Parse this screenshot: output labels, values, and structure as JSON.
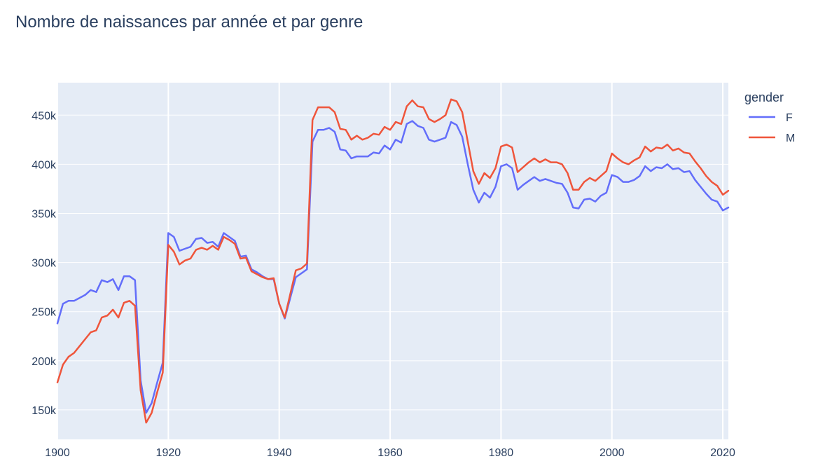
{
  "chart_data": {
    "type": "line",
    "title": "Nombre de naissances par année et par genre",
    "xlabel": "",
    "ylabel": "",
    "xlim": [
      1900,
      2021
    ],
    "ylim": [
      120000,
      483000
    ],
    "x_ticks": [
      1900,
      1920,
      1940,
      1960,
      1980,
      2000,
      2020
    ],
    "x_tick_labels": [
      "1900",
      "1920",
      "1940",
      "1960",
      "1980",
      "2000",
      "2020"
    ],
    "y_ticks": [
      150000,
      200000,
      250000,
      300000,
      350000,
      400000,
      450000
    ],
    "y_tick_labels": [
      "150k",
      "200k",
      "250k",
      "300k",
      "350k",
      "400k",
      "450k"
    ],
    "grid": true,
    "legend": {
      "title": "gender",
      "placement": "right"
    },
    "plot_background": "#e5ecf6",
    "x": [
      1900,
      1901,
      1902,
      1903,
      1904,
      1905,
      1906,
      1907,
      1908,
      1909,
      1910,
      1911,
      1912,
      1913,
      1914,
      1915,
      1916,
      1917,
      1918,
      1919,
      1920,
      1921,
      1922,
      1923,
      1924,
      1925,
      1926,
      1927,
      1928,
      1929,
      1930,
      1931,
      1932,
      1933,
      1934,
      1935,
      1936,
      1937,
      1938,
      1939,
      1940,
      1941,
      1942,
      1943,
      1944,
      1945,
      1946,
      1947,
      1948,
      1949,
      1950,
      1951,
      1952,
      1953,
      1954,
      1955,
      1956,
      1957,
      1958,
      1959,
      1960,
      1961,
      1962,
      1963,
      1964,
      1965,
      1966,
      1967,
      1968,
      1969,
      1970,
      1971,
      1972,
      1973,
      1974,
      1975,
      1976,
      1977,
      1978,
      1979,
      1980,
      1981,
      1982,
      1983,
      1984,
      1985,
      1986,
      1987,
      1988,
      1989,
      1990,
      1991,
      1992,
      1993,
      1994,
      1995,
      1996,
      1997,
      1998,
      1999,
      2000,
      2001,
      2002,
      2003,
      2004,
      2005,
      2006,
      2007,
      2008,
      2009,
      2010,
      2011,
      2012,
      2013,
      2014,
      2015,
      2016,
      2017,
      2018,
      2019,
      2020,
      2021
    ],
    "series": [
      {
        "name": "F",
        "color": "#636efa",
        "values": [
          238000,
          258000,
          261000,
          261000,
          264000,
          267000,
          272000,
          270000,
          282000,
          280000,
          283000,
          272000,
          286000,
          286000,
          282000,
          180000,
          147000,
          157000,
          178000,
          198000,
          330000,
          326000,
          312000,
          314000,
          316000,
          324000,
          325000,
          320000,
          321000,
          316000,
          330000,
          326000,
          322000,
          306000,
          307000,
          293000,
          290000,
          286000,
          283000,
          283000,
          258000,
          243000,
          264000,
          285000,
          289000,
          293000,
          423000,
          435000,
          435000,
          437000,
          433000,
          415000,
          414000,
          406000,
          408000,
          408000,
          408000,
          412000,
          411000,
          419000,
          415000,
          425000,
          422000,
          441000,
          444000,
          439000,
          437000,
          425000,
          423000,
          425000,
          427000,
          443000,
          440000,
          428000,
          400000,
          374000,
          361000,
          371000,
          366000,
          377000,
          398000,
          400000,
          396000,
          374000,
          379000,
          383000,
          387000,
          383000,
          385000,
          383000,
          381000,
          380000,
          371000,
          356000,
          355000,
          364000,
          365000,
          362000,
          368000,
          371000,
          389000,
          387000,
          382000,
          382000,
          384000,
          388000,
          398000,
          393000,
          397000,
          396000,
          400000,
          395000,
          396000,
          392000,
          393000,
          384000,
          377000,
          370000,
          364000,
          362000,
          353000,
          356000
        ]
      },
      {
        "name": "M",
        "color": "#ef553b",
        "values": [
          178000,
          196000,
          204000,
          208000,
          215000,
          222000,
          229000,
          231000,
          244000,
          246000,
          252000,
          244000,
          259000,
          261000,
          256000,
          170000,
          137000,
          147000,
          168000,
          188000,
          318000,
          311000,
          298000,
          302000,
          304000,
          313000,
          315000,
          313000,
          317000,
          313000,
          326000,
          323000,
          319000,
          304000,
          305000,
          291000,
          288000,
          285000,
          283000,
          284000,
          258000,
          244000,
          268000,
          292000,
          294000,
          299000,
          445000,
          458000,
          458000,
          458000,
          453000,
          436000,
          435000,
          425000,
          429000,
          425000,
          427000,
          431000,
          430000,
          438000,
          435000,
          443000,
          441000,
          459000,
          465000,
          459000,
          458000,
          446000,
          443000,
          446000,
          450000,
          466000,
          464000,
          453000,
          423000,
          393000,
          380000,
          391000,
          386000,
          396000,
          418000,
          420000,
          417000,
          392000,
          397000,
          402000,
          406000,
          402000,
          405000,
          402000,
          402000,
          400000,
          391000,
          374000,
          374000,
          382000,
          386000,
          383000,
          388000,
          393000,
          411000,
          406000,
          402000,
          400000,
          404000,
          407000,
          418000,
          413000,
          417000,
          416000,
          420000,
          414000,
          416000,
          412000,
          411000,
          403000,
          396000,
          388000,
          382000,
          378000,
          369000,
          373000
        ]
      }
    ]
  }
}
